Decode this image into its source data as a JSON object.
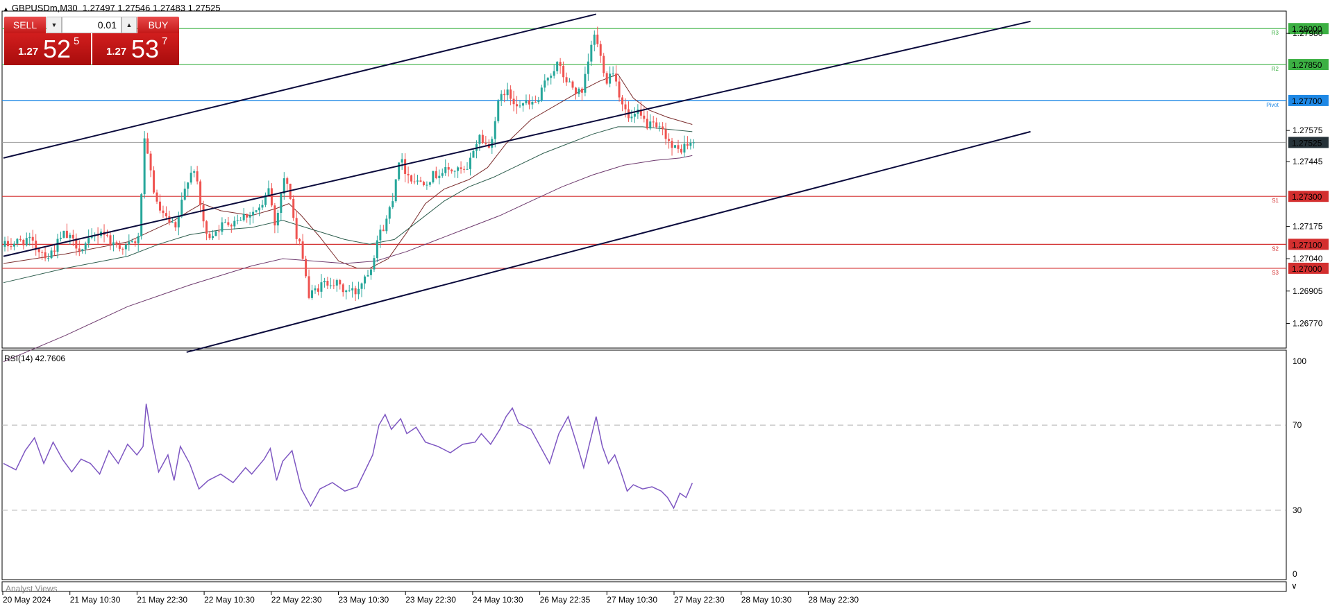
{
  "header": {
    "symbol": "GBPUSDm,M30",
    "ohlc": "1.27497 1.27546 1.27483 1.27525"
  },
  "trade_panel": {
    "sell_label": "SELL",
    "buy_label": "BUY",
    "lot_value": "0.01",
    "sell_price": {
      "small": "1.27",
      "big": "52",
      "sup": "5"
    },
    "buy_price": {
      "small": "1.27",
      "big": "53",
      "sup": "7"
    }
  },
  "rsi_label": "RSI(14) 42.7606",
  "analyst_label": "Analyst Views",
  "colors": {
    "up_candle": "#26a69a",
    "down_candle": "#ef5350",
    "green_level": "#3cb043",
    "red_level": "#d32f2f",
    "pivot_level": "#1e88e5",
    "channel": "#0a0a3c",
    "rsi_line": "#7e57c2",
    "current_price_bg": "#263238"
  },
  "chart_data": [
    {
      "type": "candlestick",
      "y_range": [
        1.2667,
        1.2807
      ],
      "y_ticks": [
        "1.27980",
        "1.27575",
        "1.27445",
        "1.27175",
        "1.27040",
        "1.26905",
        "1.26770"
      ],
      "x_tick_labels": [
        "20 May 2024",
        "21 May 10:30",
        "21 May 22:30",
        "22 May 10:30",
        "22 May 22:30",
        "23 May 10:30",
        "23 May 22:30",
        "24 May 10:30",
        "26 May 22:35",
        "27 May 10:30",
        "27 May 22:30",
        "28 May 10:30",
        "28 May 22:30"
      ],
      "levels": [
        {
          "label": "1.28000",
          "value": 1.28,
          "tag": "R3",
          "kind": "green"
        },
        {
          "label": "1.27850",
          "value": 1.2785,
          "tag": "R2",
          "kind": "green"
        },
        {
          "label": "1.27700",
          "value": 1.277,
          "tag": "Pivot",
          "kind": "pivot"
        },
        {
          "label": "1.27300",
          "value": 1.273,
          "tag": "S1",
          "kind": "red"
        },
        {
          "label": "1.27100",
          "value": 1.271,
          "tag": "S2",
          "kind": "red"
        },
        {
          "label": "1.27000",
          "value": 1.27,
          "tag": "S3",
          "kind": "red"
        }
      ],
      "current_price": {
        "label": "1.27525",
        "value": 1.27525
      },
      "price_path": [
        [
          0,
          1.2709
        ],
        [
          8,
          1.2712
        ],
        [
          15,
          1.2705
        ],
        [
          20,
          1.2714
        ],
        [
          26,
          1.2708
        ],
        [
          32,
          1.2716
        ],
        [
          36,
          1.271
        ],
        [
          40,
          1.2709
        ],
        [
          44,
          1.2712
        ],
        [
          46,
          1.2752
        ],
        [
          48,
          1.274
        ],
        [
          50,
          1.2726
        ],
        [
          53,
          1.272
        ],
        [
          56,
          1.2716
        ],
        [
          60,
          1.2738
        ],
        [
          62,
          1.2742
        ],
        [
          64,
          1.2726
        ],
        [
          66,
          1.2713
        ],
        [
          70,
          1.2717
        ],
        [
          76,
          1.2721
        ],
        [
          80,
          1.2723
        ],
        [
          84,
          1.2725
        ],
        [
          86,
          1.2734
        ],
        [
          88,
          1.2718
        ],
        [
          91,
          1.2738
        ],
        [
          93,
          1.273
        ],
        [
          95,
          1.2712
        ],
        [
          97,
          1.2706
        ],
        [
          99,
          1.2688
        ],
        [
          102,
          1.2692
        ],
        [
          106,
          1.2695
        ],
        [
          110,
          1.2691
        ],
        [
          114,
          1.269
        ],
        [
          117,
          1.2697
        ],
        [
          119,
          1.2701
        ],
        [
          121,
          1.2712
        ],
        [
          124,
          1.272
        ],
        [
          126,
          1.273
        ],
        [
          128,
          1.2746
        ],
        [
          131,
          1.2739
        ],
        [
          134,
          1.2736
        ],
        [
          137,
          1.2737
        ],
        [
          141,
          1.274
        ],
        [
          145,
          1.2741
        ],
        [
          150,
          1.274
        ],
        [
          152,
          1.275
        ],
        [
          154,
          1.2755
        ],
        [
          157,
          1.275
        ],
        [
          160,
          1.2768
        ],
        [
          162,
          1.2774
        ],
        [
          165,
          1.277
        ],
        [
          170,
          1.2768
        ],
        [
          173,
          1.277
        ],
        [
          176,
          1.278
        ],
        [
          179,
          1.2785
        ],
        [
          182,
          1.2778
        ],
        [
          185,
          1.2774
        ],
        [
          187,
          1.2772
        ],
        [
          189,
          1.2786
        ],
        [
          191,
          1.2798
        ],
        [
          193,
          1.2788
        ],
        [
          195,
          1.2779
        ],
        [
          197,
          1.2783
        ],
        [
          199,
          1.2773
        ],
        [
          202,
          1.2762
        ],
        [
          205,
          1.2764
        ],
        [
          208,
          1.276
        ],
        [
          211,
          1.2758
        ],
        [
          214,
          1.2756
        ],
        [
          216,
          1.275
        ],
        [
          218,
          1.2749
        ],
        [
          220,
          1.2751
        ],
        [
          222,
          1.2752
        ]
      ],
      "moving_averages": [
        {
          "name": "",
          "color": "#7b2d2d",
          "points": [
            [
              0,
              1.2702
            ],
            [
              20,
              1.2706
            ],
            [
              40,
              1.2711
            ],
            [
              55,
              1.272
            ],
            [
              60,
              1.2724
            ],
            [
              64,
              1.2727
            ],
            [
              70,
              1.2724
            ],
            [
              80,
              1.2722
            ],
            [
              88,
              1.2725
            ],
            [
              92,
              1.2727
            ],
            [
              96,
              1.2722
            ],
            [
              102,
              1.2713
            ],
            [
              108,
              1.2703
            ],
            [
              114,
              1.27
            ],
            [
              118,
              1.27
            ],
            [
              124,
              1.2704
            ],
            [
              130,
              1.2715
            ],
            [
              136,
              1.2727
            ],
            [
              142,
              1.2733
            ],
            [
              150,
              1.2737
            ],
            [
              156,
              1.2742
            ],
            [
              162,
              1.2752
            ],
            [
              170,
              1.2762
            ],
            [
              178,
              1.2768
            ],
            [
              186,
              1.2774
            ],
            [
              192,
              1.2778
            ],
            [
              198,
              1.2781
            ],
            [
              203,
              1.2771
            ],
            [
              208,
              1.2766
            ],
            [
              214,
              1.2763
            ],
            [
              222,
              1.276
            ]
          ]
        },
        {
          "name": "",
          "color": "#2e5e4e",
          "points": [
            [
              0,
              1.2694
            ],
            [
              20,
              1.27
            ],
            [
              40,
              1.2705
            ],
            [
              50,
              1.271
            ],
            [
              60,
              1.2714
            ],
            [
              70,
              1.2716
            ],
            [
              80,
              1.2717
            ],
            [
              90,
              1.272
            ],
            [
              100,
              1.2716
            ],
            [
              110,
              1.2712
            ],
            [
              118,
              1.271
            ],
            [
              126,
              1.2712
            ],
            [
              134,
              1.272
            ],
            [
              142,
              1.2728
            ],
            [
              150,
              1.2734
            ],
            [
              158,
              1.2738
            ],
            [
              166,
              1.2743
            ],
            [
              174,
              1.2748
            ],
            [
              182,
              1.2752
            ],
            [
              190,
              1.2756
            ],
            [
              198,
              1.2759
            ],
            [
              206,
              1.2759
            ],
            [
              214,
              1.2758
            ],
            [
              222,
              1.2757
            ]
          ]
        },
        {
          "name": "",
          "color": "#6e3a6e",
          "points": [
            [
              0,
              1.2661
            ],
            [
              20,
              1.2672
            ],
            [
              40,
              1.2684
            ],
            [
              60,
              1.2693
            ],
            [
              80,
              1.2701
            ],
            [
              90,
              1.2704
            ],
            [
              100,
              1.2703
            ],
            [
              110,
              1.2702
            ],
            [
              120,
              1.2703
            ],
            [
              130,
              1.2707
            ],
            [
              140,
              1.2712
            ],
            [
              150,
              1.2717
            ],
            [
              160,
              1.2722
            ],
            [
              170,
              1.2728
            ],
            [
              180,
              1.2734
            ],
            [
              190,
              1.2739
            ],
            [
              200,
              1.2743
            ],
            [
              210,
              1.2745
            ],
            [
              218,
              1.2746
            ],
            [
              222,
              1.2747
            ]
          ]
        }
      ],
      "channel_lines": [
        {
          "from": [
            0,
            1.2746
          ],
          "to": [
            191,
            1.2806
          ]
        },
        {
          "from": [
            0,
            1.2705
          ],
          "to": [
            331,
            1.2803
          ]
        },
        {
          "from": [
            59,
            1.2665
          ],
          "to": [
            331,
            1.2757
          ]
        }
      ]
    },
    {
      "type": "line",
      "title": "RSI(14) 42.7606",
      "y_range": [
        0,
        100
      ],
      "y_ticks": [
        100,
        70,
        30,
        0
      ],
      "levels": [
        70,
        30
      ],
      "values": [
        [
          0,
          52
        ],
        [
          4,
          49
        ],
        [
          7,
          58
        ],
        [
          10,
          64
        ],
        [
          13,
          52
        ],
        [
          16,
          62
        ],
        [
          19,
          54
        ],
        [
          22,
          48
        ],
        [
          25,
          54
        ],
        [
          28,
          52
        ],
        [
          31,
          47
        ],
        [
          34,
          58
        ],
        [
          37,
          52
        ],
        [
          40,
          61
        ],
        [
          43,
          56
        ],
        [
          45,
          60
        ],
        [
          46,
          80
        ],
        [
          48,
          62
        ],
        [
          50,
          48
        ],
        [
          53,
          56
        ],
        [
          55,
          44
        ],
        [
          57,
          60
        ],
        [
          60,
          52
        ],
        [
          63,
          40
        ],
        [
          66,
          44
        ],
        [
          70,
          47
        ],
        [
          74,
          43
        ],
        [
          78,
          50
        ],
        [
          80,
          47
        ],
        [
          84,
          54
        ],
        [
          86,
          59
        ],
        [
          88,
          44
        ],
        [
          90,
          53
        ],
        [
          93,
          58
        ],
        [
          96,
          40
        ],
        [
          99,
          32
        ],
        [
          102,
          40
        ],
        [
          106,
          43
        ],
        [
          110,
          39
        ],
        [
          114,
          41
        ],
        [
          117,
          50
        ],
        [
          119,
          56
        ],
        [
          121,
          70
        ],
        [
          123,
          75
        ],
        [
          125,
          68
        ],
        [
          128,
          73
        ],
        [
          130,
          66
        ],
        [
          133,
          69
        ],
        [
          136,
          62
        ],
        [
          140,
          60
        ],
        [
          144,
          57
        ],
        [
          148,
          61
        ],
        [
          152,
          62
        ],
        [
          154,
          66
        ],
        [
          157,
          61
        ],
        [
          160,
          68
        ],
        [
          162,
          74
        ],
        [
          164,
          78
        ],
        [
          166,
          71
        ],
        [
          170,
          68
        ],
        [
          173,
          60
        ],
        [
          176,
          52
        ],
        [
          179,
          66
        ],
        [
          182,
          74
        ],
        [
          185,
          60
        ],
        [
          187,
          50
        ],
        [
          189,
          62
        ],
        [
          191,
          74
        ],
        [
          193,
          60
        ],
        [
          195,
          52
        ],
        [
          197,
          56
        ],
        [
          199,
          48
        ],
        [
          201,
          39
        ],
        [
          203,
          42
        ],
        [
          206,
          40
        ],
        [
          209,
          41
        ],
        [
          212,
          39
        ],
        [
          214,
          36
        ],
        [
          216,
          31
        ],
        [
          218,
          38
        ],
        [
          220,
          36
        ],
        [
          222,
          42.76
        ]
      ]
    }
  ]
}
